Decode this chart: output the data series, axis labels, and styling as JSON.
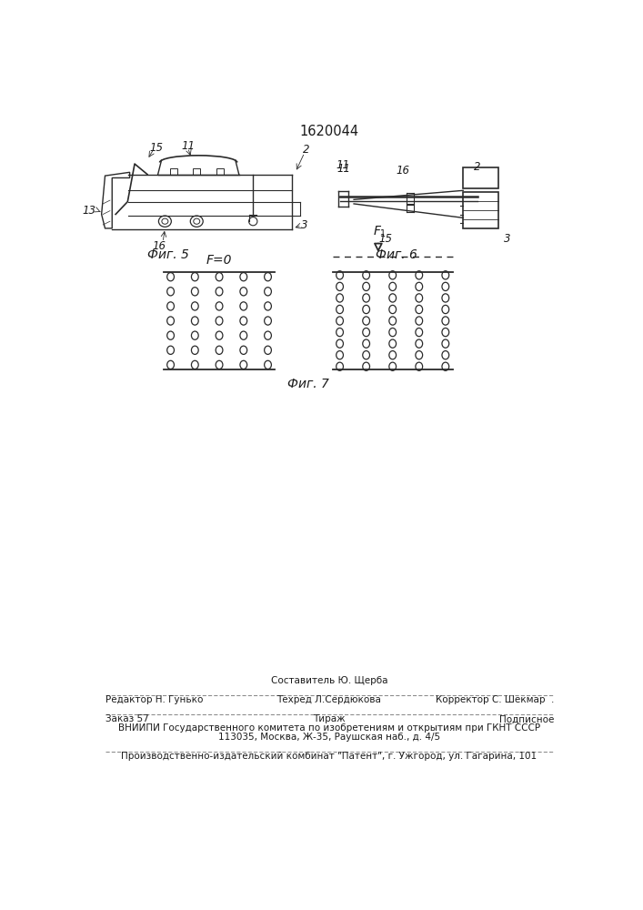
{
  "patent_number": "1620044",
  "bg_color": "#ffffff",
  "fig5_caption": "Фиг. 5",
  "fig6_caption": "Фиг. 6",
  "fig7_caption": "Фиг. 7",
  "fig7_left_label": "F=0",
  "fig7_right_label": "F1",
  "footer_sestavitel": "Составитель Ю. Щерба",
  "footer_redaktor": "Редактор Н. Гунько",
  "footer_tekhred": "Техред Л.Сердюкова",
  "footer_korrektor": "Корректор С. Шекмар  .",
  "footer_zakaz": "Заказ 57",
  "footer_tirazh": "Тираж",
  "footer_podpisnoe": "Подписное",
  "footer_vniipи": "ВНИИПИ Государственного комитета по изобретениям и открытиям при ГКНТ СССР",
  "footer_address": "113035, Москва, Ж-35, Раушская наб., д. 4/5",
  "footer_patent": "Производственно-издательский комбинат \"Патент\", г. Ужгород, ул. Гагарина, 101"
}
